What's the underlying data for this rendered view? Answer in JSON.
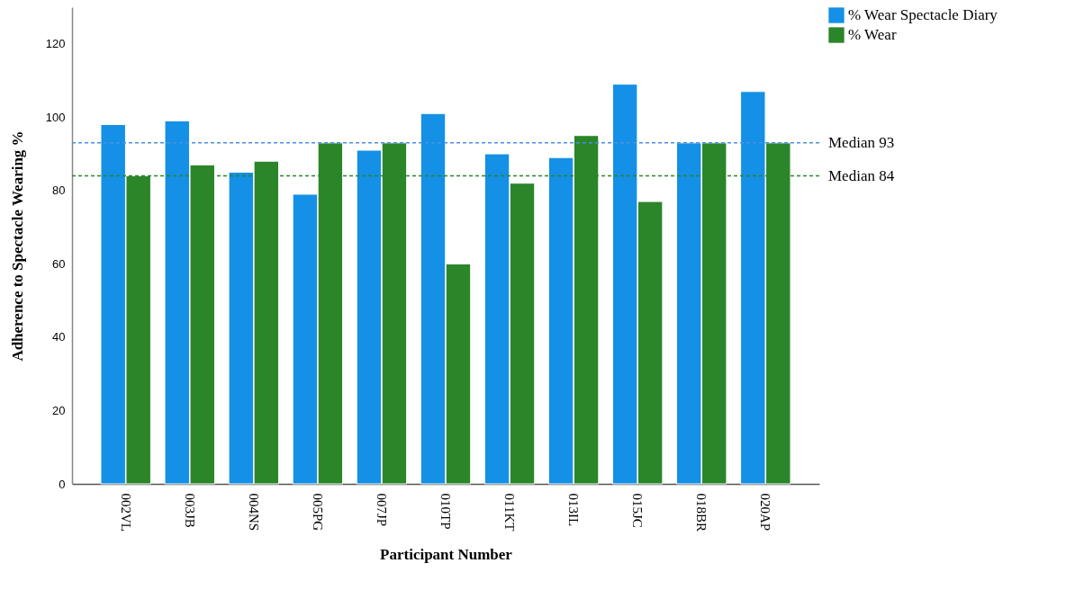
{
  "chart_data": {
    "type": "bar",
    "xlabel": "Participant Number",
    "ylabel": "Adherence to Spectacle Wearing %",
    "categories": [
      "002VL",
      "003JB",
      "004NS",
      "005PG",
      "007JP",
      "010TP",
      "011KT",
      "013IL",
      "015JC",
      "018BR",
      "020AP"
    ],
    "series": [
      {
        "name": "% Wear Spectacle Diary",
        "color": "#1490e6",
        "values": [
          98,
          99,
          85,
          79,
          91,
          101,
          90,
          89,
          109,
          93,
          107
        ]
      },
      {
        "name": "% Wear",
        "color": "#2b8529",
        "values": [
          84,
          87,
          88,
          93,
          93,
          60,
          82,
          95,
          77,
          93,
          93
        ]
      }
    ],
    "ylim": [
      0,
      130
    ],
    "yticks": [
      0,
      20,
      40,
      60,
      80,
      100,
      120
    ],
    "grid": false,
    "legend": "top right",
    "ref_lines": [
      {
        "axis": "y",
        "value": 93,
        "label": "Median 93",
        "color": "#4a90e2",
        "line_style": "dashed"
      },
      {
        "axis": "y",
        "value": 84,
        "label": "Median 84",
        "color": "#2b8529",
        "line_style": "dashed"
      }
    ]
  }
}
